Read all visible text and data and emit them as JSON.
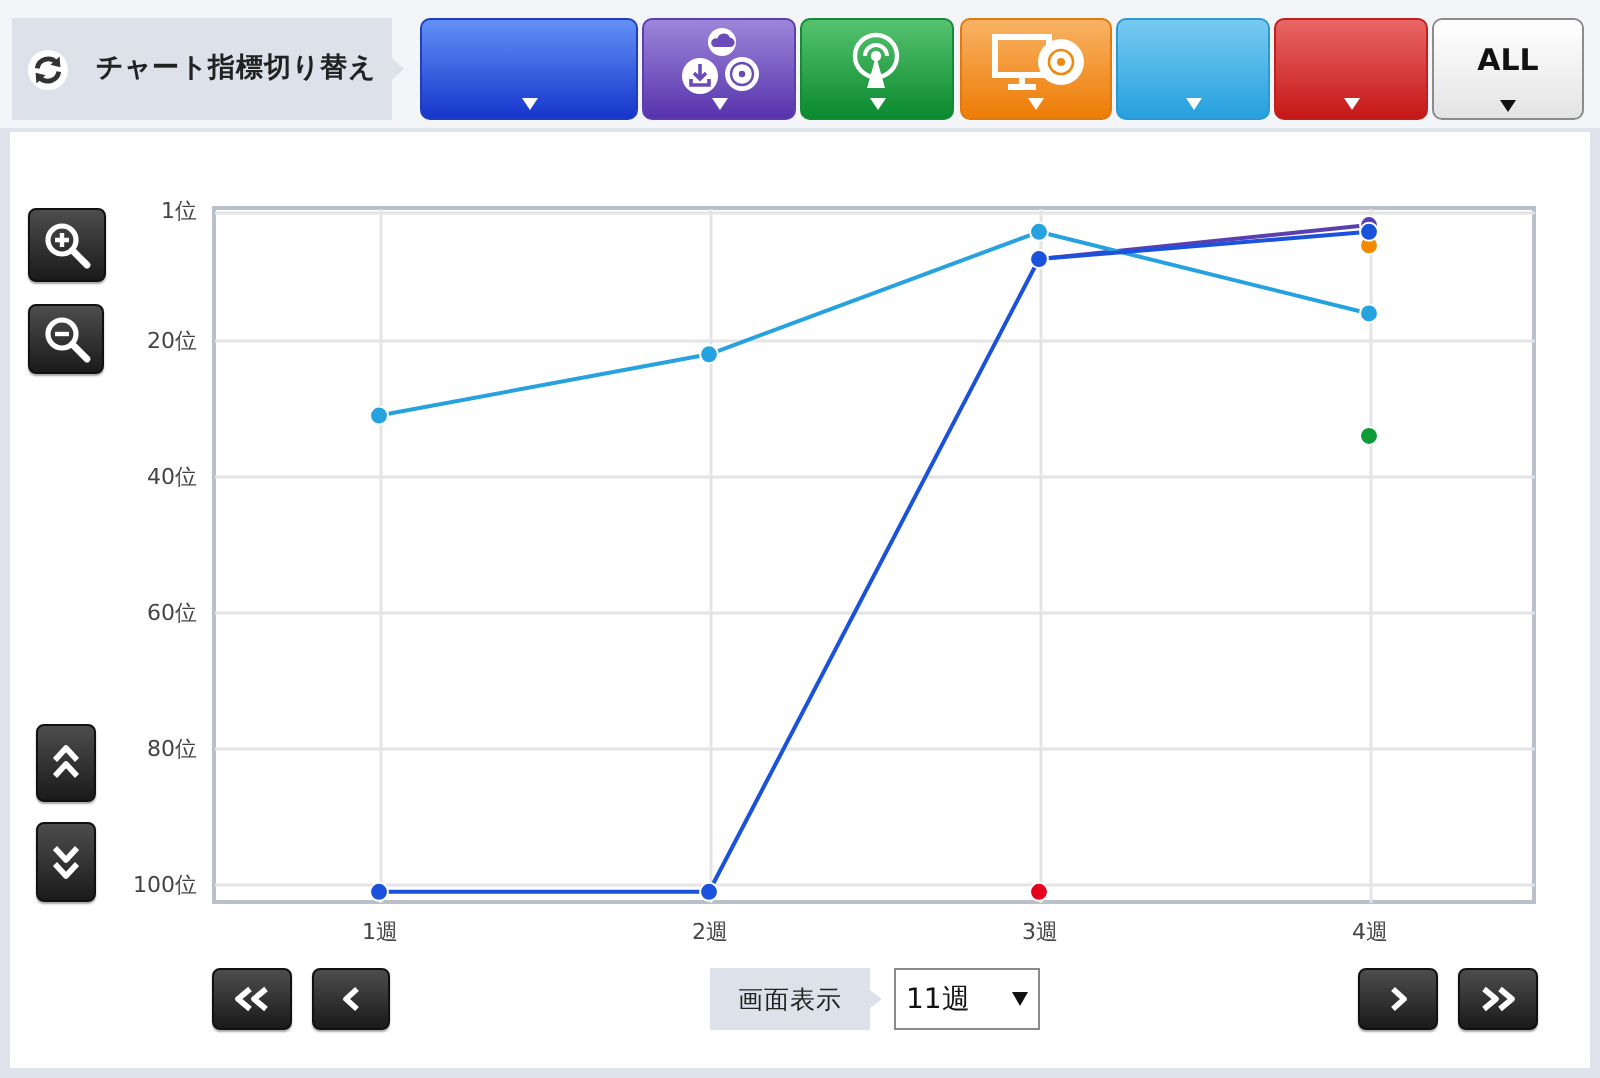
{
  "chart_data": {
    "type": "line",
    "categories": [
      "1週",
      "2週",
      "3週",
      "4週"
    ],
    "series": [
      {
        "color": "#5b3fb1",
        "values": [
          null,
          null,
          8,
          3
        ]
      },
      {
        "color": "#f28a00",
        "values": [
          null,
          null,
          null,
          6
        ]
      },
      {
        "color": "#0f9b3c",
        "values": [
          null,
          null,
          null,
          34
        ]
      },
      {
        "color": "#e5001e",
        "values": [
          null,
          null,
          101,
          null
        ]
      },
      {
        "color": "#26a2df",
        "values": [
          31,
          22,
          4,
          16
        ]
      },
      {
        "color": "#1b52dc",
        "values": [
          101,
          101,
          8,
          4
        ]
      }
    ],
    "ylim": [
      102.5,
      0.5
    ],
    "yticks": [
      {
        "value": 1,
        "label": "1位"
      },
      {
        "value": 20,
        "label": "20位"
      },
      {
        "value": 40,
        "label": "40位"
      },
      {
        "value": 60,
        "label": "60位"
      },
      {
        "value": 80,
        "label": "80位"
      },
      {
        "value": 100,
        "label": "100位"
      }
    ],
    "grid": true,
    "marker": "circle",
    "line_style": "solid",
    "annotations": [
      "チャート指標切り替え",
      "ALL",
      "画面表示",
      "11週"
    ]
  }
}
